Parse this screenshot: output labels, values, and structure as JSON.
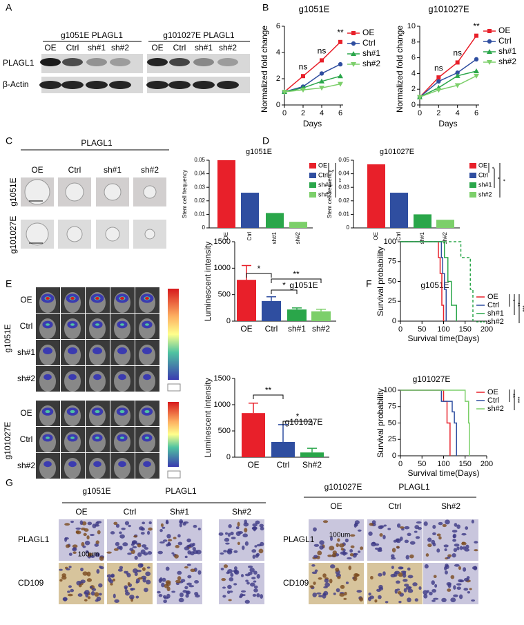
{
  "chart_data": [
    {
      "type": "line",
      "title": "g1051E",
      "xlabel": "Days",
      "ylabel": "Normalized fold change",
      "x": [
        0,
        2,
        4,
        6
      ],
      "xlim": [
        0,
        6
      ],
      "xticks": [
        0,
        2,
        4,
        6
      ],
      "ylim": [
        0,
        6
      ],
      "yticks": [
        0,
        2,
        4,
        6
      ],
      "series": [
        {
          "name": "OE",
          "color": "#e8202a",
          "marker": "square",
          "values": [
            1,
            2.2,
            3.4,
            4.8
          ]
        },
        {
          "name": "Ctrl",
          "color": "#2f4ea0",
          "marker": "circle",
          "values": [
            1,
            1.4,
            2.4,
            3.1
          ]
        },
        {
          "name": "sh#1",
          "color": "#2aa64a",
          "marker": "triangle",
          "values": [
            1,
            1.3,
            1.8,
            2.2
          ]
        },
        {
          "name": "sh#2",
          "color": "#7ccf6a",
          "marker": "triangle-down",
          "values": [
            1,
            1.15,
            1.3,
            1.6
          ]
        }
      ],
      "annotations": [
        {
          "x": 2,
          "label": "ns"
        },
        {
          "x": 4,
          "label": "ns"
        },
        {
          "x": 6,
          "label": "**"
        }
      ]
    },
    {
      "type": "line",
      "title": "g101027E",
      "xlabel": "Days",
      "ylabel": "Normalized fold change",
      "x": [
        0,
        2,
        4,
        6
      ],
      "xlim": [
        0,
        6
      ],
      "xticks": [
        0,
        2,
        4,
        6
      ],
      "ylim": [
        0,
        10
      ],
      "yticks": [
        0,
        2,
        4,
        6,
        8,
        10
      ],
      "series": [
        {
          "name": "OE",
          "color": "#e8202a",
          "marker": "square",
          "values": [
            1,
            3.5,
            5.4,
            8.8
          ]
        },
        {
          "name": "Ctrl",
          "color": "#2f4ea0",
          "marker": "circle",
          "values": [
            1,
            3,
            4.1,
            5.8
          ]
        },
        {
          "name": "sh#1",
          "color": "#2aa64a",
          "marker": "triangle",
          "values": [
            1,
            2.2,
            3.7,
            4.3
          ]
        },
        {
          "name": "sh#2",
          "color": "#7ccf6a",
          "marker": "triangle-down",
          "values": [
            1,
            1.9,
            2.5,
            3.7
          ]
        }
      ],
      "annotations": [
        {
          "x": 2,
          "label": "ns"
        },
        {
          "x": 4,
          "label": "ns"
        },
        {
          "x": 6,
          "label": "**"
        }
      ]
    },
    {
      "type": "bar",
      "title": "g1051E",
      "ylabel": "Stem cell frequency",
      "legend": true,
      "categories": [
        "OE",
        "Ctrl",
        "sh#1",
        "sh#2"
      ],
      "values": [
        0.05,
        0.026,
        0.011,
        0.0045
      ],
      "colors": [
        "#e8202a",
        "#2f4ea0",
        "#2aa64a",
        "#7ccf6a"
      ],
      "ylim": [
        0,
        0.05
      ],
      "yticks": [
        0,
        0.01,
        0.02,
        0.03,
        0.04,
        0.05
      ],
      "significance": [
        "*",
        "**"
      ]
    },
    {
      "type": "bar",
      "title": "g101027E",
      "ylabel": "Stem cell frequency",
      "legend": true,
      "categories": [
        "OE",
        "Ctrl",
        "sh#1",
        "sh#2"
      ],
      "values": [
        0.047,
        0.026,
        0.01,
        0.006
      ],
      "colors": [
        "#e8202a",
        "#2f4ea0",
        "#2aa64a",
        "#7ccf6a"
      ],
      "ylim": [
        0,
        0.05
      ],
      "yticks": [
        0,
        0.01,
        0.02,
        0.03,
        0.04,
        0.05
      ],
      "significance": [
        "*",
        "*",
        "*"
      ]
    },
    {
      "type": "bar",
      "title": "g1051E",
      "ylabel": "Luminescent intensity",
      "legend": false,
      "categories": [
        "OE",
        "Ctrl",
        "sh#1",
        "sh#2"
      ],
      "values": [
        780,
        380,
        220,
        185
      ],
      "errors": [
        270,
        80,
        30,
        40
      ],
      "colors": [
        "#e8202a",
        "#2f4ea0",
        "#2aa64a",
        "#7ccf6a"
      ],
      "ylim": [
        0,
        1500
      ],
      "yticks": [
        0,
        500,
        1000,
        1500
      ],
      "significance": [
        "*",
        "*",
        "**"
      ]
    },
    {
      "type": "bar",
      "title": "g101027E",
      "ylabel": "Luminescent intensity",
      "legend": false,
      "categories": [
        "OE",
        "Ctrl",
        "Sh#2"
      ],
      "values": [
        840,
        290,
        90
      ],
      "errors": [
        190,
        330,
        80
      ],
      "colors": [
        "#e8202a",
        "#2f4ea0",
        "#2aa64a"
      ],
      "ylim": [
        0,
        1500
      ],
      "yticks": [
        0,
        500,
        1000,
        1500
      ],
      "significance": [
        "**",
        "*"
      ]
    },
    {
      "type": "step",
      "title": "g1051E",
      "xlabel": "Survival time(Days)",
      "ylabel": "Survival probability",
      "xlim": [
        0,
        200
      ],
      "xticks": [
        0,
        50,
        100,
        150,
        200
      ],
      "ylim": [
        0,
        100
      ],
      "yticks": [
        0,
        25,
        50,
        75,
        100
      ],
      "series": [
        {
          "name": "OE",
          "color": "#e8202a",
          "dashed": false,
          "x": [
            0,
            88,
            92,
            96,
            100
          ],
          "values": [
            100,
            80,
            60,
            20,
            0
          ]
        },
        {
          "name": "Ctrl",
          "color": "#2f4ea0",
          "dashed": false,
          "x": [
            0,
            95,
            98,
            102,
            106
          ],
          "values": [
            100,
            80,
            60,
            40,
            0
          ]
        },
        {
          "name": "sh#1",
          "color": "#2aa64a",
          "dashed": false,
          "x": [
            0,
            102,
            110,
            118,
            130
          ],
          "values": [
            100,
            80,
            50,
            20,
            0
          ]
        },
        {
          "name": "sh#2",
          "color": "#2aa64a",
          "dashed": true,
          "x": [
            0,
            140,
            162,
            168
          ],
          "values": [
            100,
            80,
            40,
            0
          ]
        }
      ],
      "significance": [
        "*",
        "**",
        "***"
      ]
    },
    {
      "type": "step",
      "title": "g101027E",
      "xlabel": "Survival time(Days)",
      "ylabel": "Survival probability",
      "xlim": [
        0,
        200
      ],
      "xticks": [
        0,
        50,
        100,
        150,
        200
      ],
      "ylim": [
        0,
        100
      ],
      "yticks": [
        0,
        25,
        50,
        75,
        100
      ],
      "series": [
        {
          "name": "OE",
          "color": "#e8202a",
          "dashed": false,
          "x": [
            0,
            100,
            108,
            115
          ],
          "values": [
            100,
            83,
            50,
            0
          ]
        },
        {
          "name": "Ctrl",
          "color": "#2f4ea0",
          "dashed": false,
          "x": [
            0,
            95,
            120,
            125,
            130
          ],
          "values": [
            100,
            83,
            67,
            50,
            0
          ]
        },
        {
          "name": "sh#2",
          "color": "#7ccf6a",
          "dashed": false,
          "x": [
            0,
            150,
            158,
            160
          ],
          "values": [
            100,
            83,
            50,
            0
          ]
        }
      ],
      "significance": [
        "**",
        "***"
      ]
    }
  ],
  "panels": {
    "A": {
      "letter": "A",
      "headers": [
        "g1051E PLAGL1",
        "g101027E PLAGL1"
      ],
      "lanes": [
        "OE",
        "Ctrl",
        "sh#1",
        "sh#2",
        "OE",
        "Ctrl",
        "sh#1",
        "sh#2"
      ],
      "rows": [
        "PLAGL1",
        "β-Actin"
      ]
    },
    "B": {
      "letter": "B"
    },
    "C": {
      "letter": "C",
      "header": "PLAGL1",
      "columns": [
        "OE",
        "Ctrl",
        "sh#1",
        "sh#2"
      ],
      "rows": [
        "g1051E",
        "g101027E"
      ]
    },
    "D": {
      "letter": "D"
    },
    "E": {
      "letter": "E",
      "groups": [
        "g1051E",
        "g101027E"
      ],
      "rows_first": [
        "OE",
        "Ctrl",
        "sh#1",
        "sh#2"
      ],
      "rows_second": [
        "OE",
        "Ctrl",
        "sh#2"
      ]
    },
    "F": {
      "letter": "F"
    },
    "G": {
      "letter": "G",
      "left": {
        "headers": [
          "g1051E",
          "PLAGL1"
        ],
        "columns": [
          "OE",
          "Ctrl",
          "Sh#1",
          "Sh#2"
        ],
        "rows": [
          "PLAGL1",
          "CD109"
        ],
        "scale": "100um"
      },
      "right": {
        "headers": [
          "g101027E",
          "PLAGL1"
        ],
        "columns": [
          "OE",
          "Ctrl",
          "Sh#2"
        ],
        "rows": [
          "PLAGL1",
          "CD109"
        ],
        "scale": "100um"
      }
    }
  }
}
